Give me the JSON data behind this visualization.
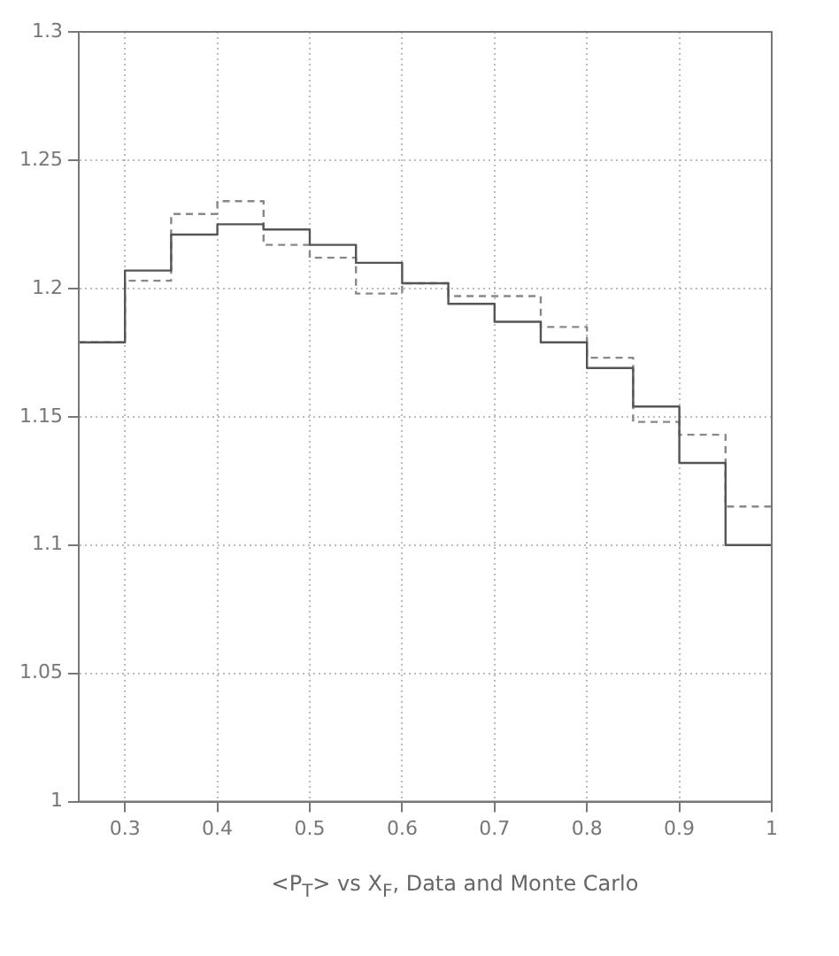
{
  "chart_data": {
    "type": "histogram",
    "xlabel": "<P$_{T}$> vs X$_{F}$, Data and Monte Carlo",
    "bins": [
      0.25,
      0.3,
      0.35,
      0.4,
      0.45,
      0.5,
      0.55,
      0.6,
      0.65,
      0.7,
      0.75,
      0.8,
      0.85,
      0.9,
      0.95,
      1
    ],
    "series": [
      {
        "color": "#555555",
        "line_style": "solid",
        "values": [
          1.179,
          1.207,
          1.221,
          1.225,
          1.223,
          1.217,
          1.21,
          1.202,
          1.194,
          1.187,
          1.179,
          1.169,
          1.154,
          1.132,
          1.1
        ]
      },
      {
        "color": "#888888",
        "line_style": "dashed",
        "values": [
          1.179,
          1.203,
          1.229,
          1.234,
          1.217,
          1.212,
          1.198,
          1.202,
          1.197,
          1.197,
          1.185,
          1.173,
          1.148,
          1.143,
          1.115
        ]
      }
    ],
    "xlim": [
      0.25,
      1
    ],
    "xticks": [
      0.3,
      0.4,
      0.5,
      0.6,
      0.7,
      0.8,
      0.9,
      1
    ],
    "ylim": [
      1,
      1.3
    ],
    "yticks": [
      1,
      1.05,
      1.1,
      1.15,
      1.2,
      1.25,
      1.3
    ],
    "grid": true,
    "legend": false
  }
}
